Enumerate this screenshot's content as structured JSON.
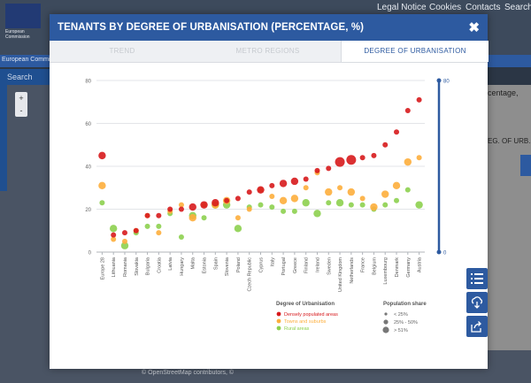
{
  "background": {
    "top_nav": [
      "Legal Notice",
      "Cookies",
      "Contacts",
      "Search"
    ],
    "logo_text_1": "European",
    "logo_text_2": "Commission",
    "band_text": "European Commis",
    "search_label": "Search",
    "zoom_in": "+",
    "zoom_out": "-",
    "right_text_1": "centage,",
    "right_text_2": "EG. OF URB.",
    "footer": "© OpenStreetMap contributors, ©"
  },
  "modal": {
    "title": "TENANTS BY DEGREE OF URBANISATION (PERCENTAGE, %)",
    "close_icon": "✖",
    "tabs": [
      {
        "label": "TREND",
        "active": false
      },
      {
        "label": "METRO REGIONS",
        "active": false
      },
      {
        "label": "DEGREE OF URBANISATION",
        "active": true
      }
    ],
    "buttons": [
      "list-icon",
      "download-icon",
      "share-icon"
    ]
  },
  "chart_data": {
    "type": "scatter",
    "ylim": [
      0,
      80
    ],
    "yticks": [
      0,
      20,
      40,
      60,
      80
    ],
    "slider_top": "80",
    "slider_bottom": "0",
    "categories": [
      "Europe 28",
      "Lithuania",
      "Romania",
      "Slovakia",
      "Bulgaria",
      "Croatia",
      "Latvia",
      "Hungary",
      "Malta",
      "Estonia",
      "Spain",
      "Slovenia",
      "Poland",
      "Czech Republic",
      "Cyprus",
      "Italy",
      "Portugal",
      "Greece",
      "Finland",
      "Ireland",
      "Sweden",
      "United Kingdom",
      "Netherlands",
      "France",
      "Belgium",
      "Luxembourg",
      "Denmark",
      "Germany",
      "Austria"
    ],
    "series": [
      {
        "name": "Densely populated areas",
        "color": "#d7191c",
        "values": [
          45,
          8,
          9,
          10,
          17,
          17,
          20,
          20,
          21,
          22,
          23,
          24,
          25,
          28,
          29,
          31,
          32,
          33,
          34,
          38,
          39,
          42,
          43,
          44,
          45,
          50,
          56,
          66,
          71
        ],
        "sizes": [
          2,
          1,
          1,
          1,
          1,
          1,
          1,
          1,
          2,
          2,
          2,
          1,
          1,
          1,
          2,
          1,
          2,
          2,
          1,
          1,
          1,
          3,
          3,
          1,
          1,
          1,
          1,
          1,
          1
        ]
      },
      {
        "name": "Towns and suburbs",
        "color": "#fdae3c",
        "values": [
          31,
          6,
          5,
          10,
          17,
          9,
          19,
          22,
          16,
          22,
          22,
          24,
          16,
          20,
          29,
          26,
          24,
          25,
          30,
          37,
          28,
          30,
          28,
          25,
          21,
          27,
          31,
          42,
          44
        ],
        "sizes": [
          2,
          1,
          1,
          1,
          1,
          1,
          1,
          1,
          2,
          1,
          2,
          2,
          1,
          1,
          1,
          1,
          2,
          2,
          1,
          1,
          2,
          1,
          2,
          1,
          2,
          2,
          2,
          2,
          1
        ]
      },
      {
        "name": "Rural areas",
        "color": "#8dd04f",
        "values": [
          23,
          11,
          3,
          9,
          12,
          12,
          18,
          7,
          17,
          16,
          22,
          22,
          11,
          21,
          22,
          21,
          19,
          19,
          23,
          18,
          23,
          23,
          22,
          22,
          20,
          22,
          24,
          29,
          22
        ],
        "sizes": [
          1,
          2,
          2,
          1,
          1,
          1,
          1,
          1,
          2,
          1,
          2,
          2,
          2,
          1,
          1,
          1,
          1,
          1,
          2,
          2,
          1,
          2,
          1,
          1,
          1,
          1,
          1,
          1,
          2
        ]
      }
    ],
    "legend_color_title": "Degree of Urbanisation",
    "legend_size_title": "Population share",
    "size_labels": [
      "< 25%",
      "25% - 50%",
      "> 51%"
    ]
  }
}
